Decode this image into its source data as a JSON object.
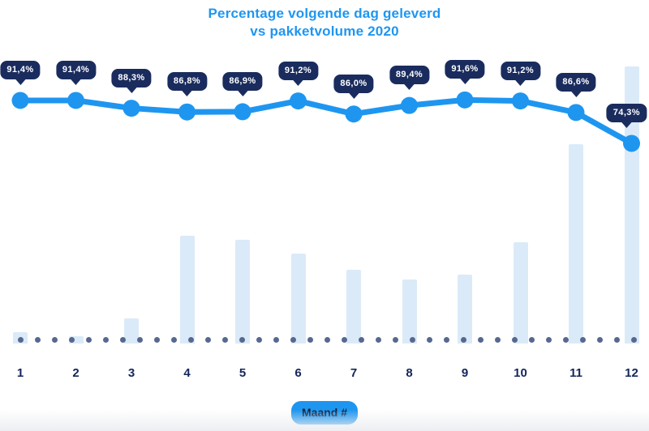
{
  "title": {
    "line1": "Percentage volgende dag geleverd",
    "line2": "vs pakketvolume 2020"
  },
  "x_axis": {
    "label_badge": "Maand #",
    "tick_labels": [
      "1",
      "2",
      "3",
      "4",
      "5",
      "6",
      "7",
      "8",
      "9",
      "10",
      "11",
      "12"
    ]
  },
  "chart_data": {
    "type": "line+bar",
    "title": "Percentage volgende dag geleverd vs pakketvolume 2020",
    "categories": [
      1,
      2,
      3,
      4,
      5,
      6,
      7,
      8,
      9,
      10,
      11,
      12
    ],
    "xlabel": "Maand #",
    "ylabel": "",
    "legend": "none",
    "grid": "dotted baseline only",
    "series": [
      {
        "name": "Percentage volgende dag geleverd",
        "type": "line",
        "unit": "%",
        "values": [
          91.4,
          91.4,
          88.3,
          86.8,
          86.9,
          91.2,
          86.0,
          89.4,
          91.6,
          91.2,
          86.6,
          74.3
        ],
        "labels": [
          "91,4%",
          "91,4%",
          "88,3%",
          "86,8%",
          "86,9%",
          "91,2%",
          "86,0%",
          "89,4%",
          "91,6%",
          "91,2%",
          "86,6%",
          "74,3%"
        ],
        "ylim_est": [
          70,
          95
        ]
      },
      {
        "name": "Pakketvolume",
        "type": "bar",
        "unit": "relative volume (estimated from bar heights, max month = 100)",
        "values": [
          4,
          2.5,
          9,
          39,
          37.5,
          32.5,
          26.5,
          23,
          25,
          36.5,
          72,
          100
        ]
      }
    ]
  },
  "colors": {
    "accent_blue": "#1E96F0",
    "badge_navy": "#1A2C5E",
    "badge_text": "#FFFFFF",
    "bar_fill": "#DBEAF8",
    "baseline_dot": "#56688F",
    "title_blue": "#1E96F0",
    "x_label_navy": "#13265B",
    "xlabel_badge_bg": "#1E96F0",
    "xlabel_badge_text": "#0D1F3C"
  }
}
